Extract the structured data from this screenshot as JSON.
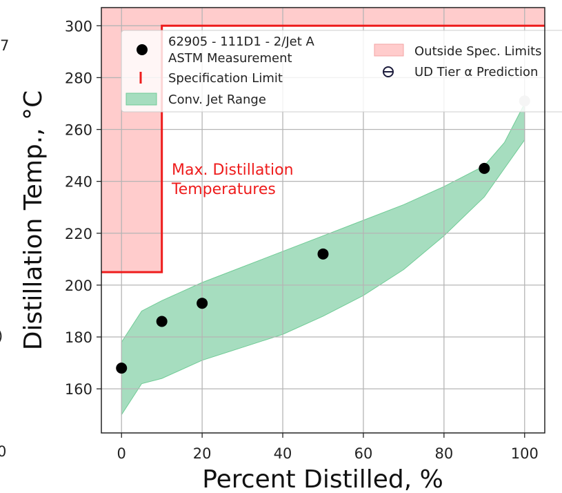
{
  "chart_data": {
    "type": "scatter",
    "xlabel": "Percent Distilled, %",
    "ylabel": "Distillation Temp., °C",
    "xlim": [
      -5,
      105
    ],
    "ylim": [
      143,
      307
    ],
    "x_ticks": [
      "0",
      "20",
      "40",
      "60",
      "80",
      "100"
    ],
    "y_ticks": [
      "160",
      "180",
      "200",
      "220",
      "240",
      "260",
      "280",
      "300"
    ],
    "grid": true,
    "legend_placement": "top",
    "legend": {
      "measurement": [
        "62905 - 111D1 - 2/Jet A",
        "ASTM Measurement"
      ],
      "spec_limit": "Specification Limit",
      "jet_range": "Conv. Jet Range",
      "outside_spec": "Outside Spec. Limits",
      "prediction": "UD Tier α Prediction"
    },
    "annotation": [
      "Max. Distillation",
      "Temperatures"
    ],
    "measurement": {
      "x": [
        0,
        10,
        20,
        50,
        90
      ],
      "y": [
        168,
        186,
        193,
        212,
        245
      ]
    },
    "prediction": {
      "x": [
        100
      ],
      "y": [
        271
      ]
    },
    "spec_limit": {
      "x": [
        -5,
        10,
        10,
        105
      ],
      "y": [
        205,
        205,
        300,
        300
      ]
    },
    "jet_range": {
      "x": [
        0,
        5,
        10,
        20,
        30,
        40,
        50,
        60,
        70,
        80,
        90,
        95,
        100
      ],
      "upper": [
        178,
        190,
        194,
        201,
        207,
        213,
        219,
        225,
        231,
        238,
        246,
        255,
        270
      ],
      "lower": [
        150,
        162,
        164,
        171,
        176,
        181,
        188,
        196,
        206,
        219,
        234,
        245,
        256
      ]
    },
    "colors": {
      "measurement": "#000000",
      "prediction": "#c6c6c6",
      "spec_limit": "#ee1c1c",
      "outside_spec_fill": "#ffcccc",
      "jet_range_fill": "#a6ddbf",
      "jet_range_edge": "#6fcb95",
      "annotation": "#ee1c1c"
    }
  },
  "edge_labels": {
    "top_left": "7",
    "mid_left": ")",
    "bottom_left": "0"
  }
}
